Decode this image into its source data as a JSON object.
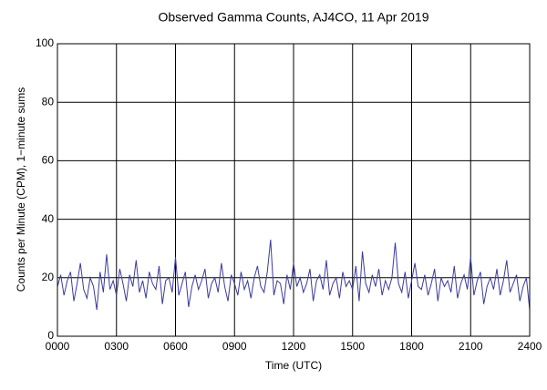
{
  "chart_data": {
    "type": "line",
    "title": "Observed Gamma Counts, AJ4CO, 11 Apr 2019",
    "x_label": "Time (UTC)",
    "y_label": "Counts per Minute (CPM), 1−minute sums",
    "x": [
      0,
      10,
      20,
      30,
      40,
      50,
      60,
      70,
      80,
      90,
      100,
      110,
      120,
      130,
      140,
      150,
      160,
      170,
      180,
      190,
      200,
      210,
      220,
      230,
      240,
      250,
      260,
      270,
      280,
      290,
      300,
      310,
      320,
      330,
      340,
      350,
      360,
      370,
      380,
      390,
      400,
      410,
      420,
      430,
      440,
      450,
      460,
      470,
      480,
      490,
      500,
      510,
      520,
      530,
      540,
      550,
      560,
      570,
      580,
      590,
      600,
      610,
      620,
      630,
      640,
      650,
      660,
      670,
      680,
      690,
      700,
      710,
      720,
      730,
      740,
      750,
      760,
      770,
      780,
      790,
      800,
      810,
      820,
      830,
      840,
      850,
      860,
      870,
      880,
      890,
      900,
      910,
      920,
      930,
      940,
      950,
      960,
      970,
      980,
      990,
      1000,
      1010,
      1020,
      1030,
      1040,
      1050,
      1060,
      1070,
      1080,
      1090,
      1100,
      1110,
      1120,
      1130,
      1140,
      1150,
      1160,
      1170,
      1180,
      1190,
      1200,
      1210,
      1220,
      1230,
      1240,
      1250,
      1260,
      1270,
      1280,
      1290,
      1300,
      1310,
      1320,
      1330,
      1340,
      1350,
      1360,
      1370,
      1380,
      1390,
      1400,
      1410,
      1420,
      1430,
      1440
    ],
    "series": [
      {
        "name": "CPM",
        "color": "#3b3b9e",
        "values": [
          17,
          21,
          14,
          19,
          22,
          12,
          18,
          25,
          16,
          13,
          20,
          17,
          9,
          22,
          15,
          28,
          16,
          19,
          14,
          23,
          18,
          12,
          21,
          17,
          26,
          15,
          19,
          13,
          22,
          18,
          16,
          24,
          11,
          19,
          20,
          15,
          27,
          14,
          18,
          22,
          10,
          17,
          21,
          16,
          19,
          23,
          13,
          18,
          20,
          15,
          25,
          17,
          12,
          21,
          18,
          14,
          22,
          16,
          19,
          13,
          20,
          24,
          17,
          15,
          22,
          33,
          14,
          19,
          18,
          11,
          21,
          16,
          25,
          17,
          20,
          15,
          18,
          23,
          12,
          19,
          21,
          16,
          26,
          14,
          18,
          20,
          13,
          22,
          17,
          19,
          16,
          24,
          12,
          29,
          18,
          15,
          21,
          17,
          23,
          14,
          19,
          16,
          20,
          32,
          18,
          15,
          22,
          13,
          19,
          25,
          17,
          16,
          21,
          14,
          18,
          23,
          12,
          20,
          17,
          19,
          15,
          24,
          13,
          18,
          21,
          16,
          27,
          14,
          19,
          22,
          11,
          17,
          20,
          16,
          23,
          14,
          19,
          26,
          15,
          18,
          21,
          12,
          17,
          20,
          9
        ]
      }
    ],
    "xlim": [
      0,
      1440
    ],
    "xticks": [
      {
        "value": 0,
        "label": "0000"
      },
      {
        "value": 180,
        "label": "0300"
      },
      {
        "value": 360,
        "label": "0600"
      },
      {
        "value": 540,
        "label": "0900"
      },
      {
        "value": 720,
        "label": "1200"
      },
      {
        "value": 900,
        "label": "1500"
      },
      {
        "value": 1080,
        "label": "1800"
      },
      {
        "value": 1260,
        "label": "2100"
      },
      {
        "value": 1440,
        "label": "2400"
      }
    ],
    "ylim": [
      0,
      100
    ],
    "yticks": [
      0,
      20,
      40,
      60,
      80,
      100
    ],
    "grid": true
  }
}
